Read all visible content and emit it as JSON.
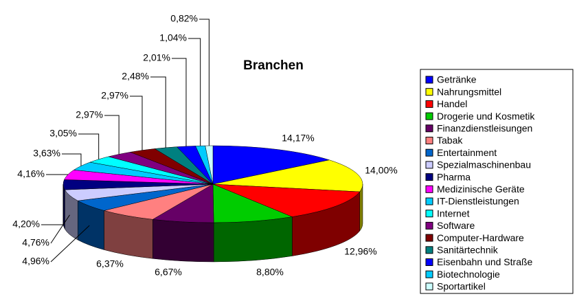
{
  "chart_data": {
    "type": "pie",
    "title": "Branchen",
    "categories": [
      "Getränke",
      "Nahrungsmittel",
      "Handel",
      "Drogerie und Kosmetik",
      "Finanzdienstleisungen",
      "Tabak",
      "Entertainment",
      "Spezialmaschinenbau",
      "Pharma",
      "Medizinische Geräte",
      "IT-Dienstleistungen",
      "Internet",
      "Software",
      "Computer-Hardware",
      "Sanitärtechnik",
      "Eisenbahn und Straße",
      "Biotechnologie",
      "Sportartikel"
    ],
    "values": [
      14.17,
      14.0,
      12.96,
      8.8,
      6.67,
      6.37,
      4.96,
      4.76,
      4.2,
      4.16,
      3.63,
      3.05,
      2.97,
      2.97,
      2.48,
      2.01,
      1.04,
      0.82
    ],
    "value_labels": [
      "14,17%",
      "14,00%",
      "12,96%",
      "8,80%",
      "6,67%",
      "6,37%",
      "4,96%",
      "4,76%",
      "4,20%",
      "4,16%",
      "3,63%",
      "3,05%",
      "2,97%",
      "2,97%",
      "2,48%",
      "2,01%",
      "1,04%",
      "0,82%"
    ],
    "colors": [
      "#0000ff",
      "#ffff00",
      "#ff0000",
      "#00cc00",
      "#660066",
      "#ff8080",
      "#0066cc",
      "#ccccff",
      "#000080",
      "#ff00ff",
      "#00ccff",
      "#00ffff",
      "#800080",
      "#800000",
      "#008080",
      "#0000ff",
      "#00ccff",
      "#ccffff"
    ]
  }
}
